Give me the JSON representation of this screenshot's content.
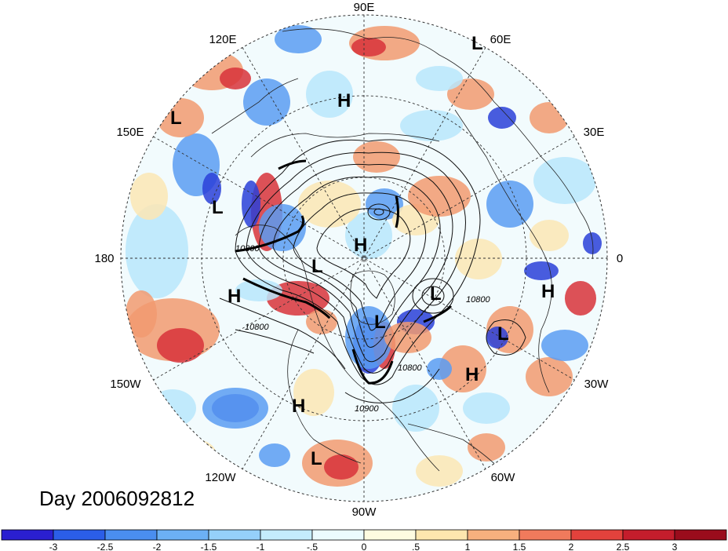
{
  "title": "Day 2006092812",
  "longitude_labels": {
    "e90": "90E",
    "e60": "60E",
    "e30": "30E",
    "zero": "0",
    "w30": "30W",
    "w60": "60W",
    "w90": "90W",
    "w120": "120W",
    "w150": "150W",
    "e180": "180",
    "e150": "150E",
    "e120": "120E"
  },
  "contour_labels": [
    "10800",
    "10800",
    "10800",
    "10900",
    "10800"
  ],
  "pressure_markers": [
    {
      "kind": "L",
      "id": "l-60e"
    },
    {
      "kind": "H",
      "id": "h-siberia"
    },
    {
      "kind": "L",
      "id": "l-150e"
    },
    {
      "kind": "L",
      "id": "l-pacific-w"
    },
    {
      "kind": "H",
      "id": "h-pole"
    },
    {
      "kind": "L",
      "id": "l-alaska"
    },
    {
      "kind": "H",
      "id": "h-pacific"
    },
    {
      "kind": "L",
      "id": "l-greenland"
    },
    {
      "kind": "L",
      "id": "l-hudson"
    },
    {
      "kind": "H",
      "id": "h-africa"
    },
    {
      "kind": "L",
      "id": "l-iberia"
    },
    {
      "kind": "H",
      "id": "h-atlantic"
    },
    {
      "kind": "H",
      "id": "h-california"
    },
    {
      "kind": "L",
      "id": "l-mexico"
    }
  ],
  "colorbar": {
    "ticks": [
      "-3",
      "-2.5",
      "-2",
      "-1.5",
      "-1",
      "-.5",
      "0",
      ".5",
      "1",
      "1.5",
      "2",
      "2.5",
      "3"
    ],
    "colors": [
      "#2a1fd0",
      "#2b5ee8",
      "#4a8ef0",
      "#6cb0f5",
      "#95d0fa",
      "#c4ecfc",
      "#ebfbfe",
      "#fefbe0",
      "#fde6ae",
      "#f7b07e",
      "#f07a5c",
      "#e3423c",
      "#c41d2c",
      "#9a0c1c"
    ]
  },
  "colors": {
    "neg_strong": "#2a3fd8",
    "neg_mid": "#5a9cf2",
    "neg_light": "#b8e6fb",
    "neutral": "#f2fbfd",
    "pos_light": "#fbe6b4",
    "pos_mid": "#f29a70",
    "pos_strong": "#d8323a"
  }
}
